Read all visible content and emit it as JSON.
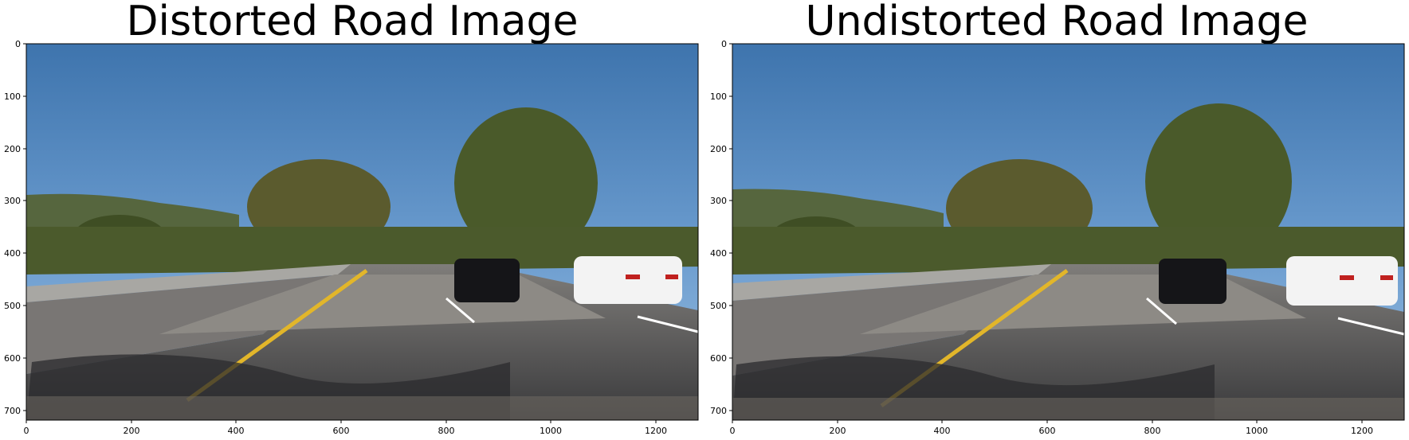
{
  "figure": {
    "panels": [
      {
        "title": "Distorted Road Image",
        "x_ticks": [
          "0",
          "200",
          "400",
          "600",
          "800",
          "1000",
          "1200"
        ],
        "y_ticks": [
          "0",
          "100",
          "200",
          "300",
          "400",
          "500",
          "600",
          "700"
        ]
      },
      {
        "title": "Undistorted Road Image",
        "x_ticks": [
          "0",
          "200",
          "400",
          "600",
          "800",
          "1000",
          "1200"
        ],
        "y_ticks": [
          "0",
          "100",
          "200",
          "300",
          "400",
          "500",
          "600",
          "700"
        ]
      }
    ]
  }
}
